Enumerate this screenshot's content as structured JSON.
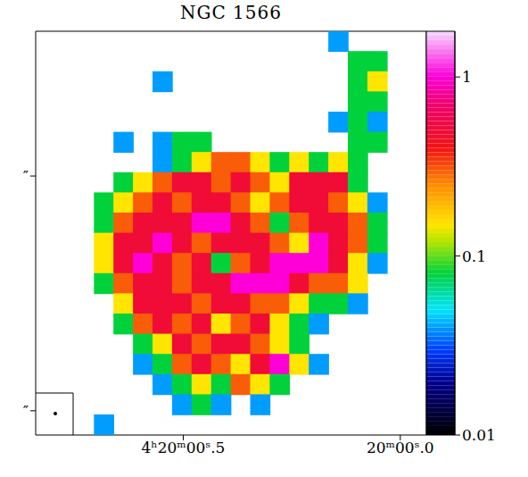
{
  "chart_data": {
    "type": "heatmap",
    "title": "NGC 1566",
    "x": [
      0.8175,
      0.7725,
      0.7275,
      0.6825,
      0.6375,
      0.5925,
      0.5475,
      0.5025,
      0.4575,
      0.4125,
      0.3675,
      0.3225,
      0.2775,
      0.2325,
      0.1875,
      0.1425,
      0.0975,
      0.0525,
      0.0075,
      -0.0375
    ],
    "y": [
      17.21,
      14.63,
      12.05,
      9.47,
      6.89,
      4.31,
      1.73,
      -0.85,
      -3.43,
      -6.01,
      -8.59,
      -11.17,
      -13.75,
      -16.33,
      -18.91,
      -21.49,
      -24.07,
      -26.65,
      -29.23,
      -31.81
    ],
    "cells": [
      [
        null,
        null,
        null,
        null,
        null,
        null,
        null,
        null,
        null,
        null,
        null,
        null,
        null,
        null,
        null,
        0.04,
        null,
        null,
        null,
        null
      ],
      [
        null,
        null,
        null,
        null,
        null,
        null,
        null,
        null,
        null,
        null,
        null,
        null,
        null,
        null,
        null,
        null,
        0.08,
        0.08,
        null,
        null
      ],
      [
        null,
        null,
        null,
        null,
        null,
        null,
        0.04,
        null,
        null,
        null,
        null,
        null,
        null,
        null,
        null,
        null,
        0.08,
        0.15,
        null,
        null
      ],
      [
        null,
        null,
        null,
        null,
        null,
        null,
        null,
        null,
        null,
        null,
        null,
        null,
        null,
        null,
        null,
        null,
        0.08,
        0.08,
        null,
        null
      ],
      [
        null,
        null,
        null,
        null,
        null,
        null,
        null,
        null,
        null,
        null,
        null,
        null,
        null,
        null,
        null,
        0.04,
        0.08,
        0.04,
        null,
        null
      ],
      [
        null,
        null,
        null,
        null,
        0.04,
        null,
        0.04,
        0.08,
        0.08,
        null,
        null,
        null,
        null,
        null,
        null,
        null,
        0.08,
        0.08,
        null,
        null
      ],
      [
        null,
        null,
        null,
        null,
        null,
        null,
        0.04,
        0.08,
        0.15,
        0.3,
        0.3,
        0.15,
        0.08,
        0.15,
        0.08,
        0.15,
        0.08,
        null,
        null,
        null
      ],
      [
        null,
        null,
        null,
        null,
        0.08,
        0.15,
        0.3,
        0.5,
        0.5,
        0.3,
        0.5,
        0.3,
        0.15,
        0.5,
        0.5,
        0.5,
        0.08,
        null,
        null,
        null
      ],
      [
        null,
        null,
        null,
        0.08,
        0.15,
        0.3,
        0.5,
        0.3,
        0.5,
        0.5,
        0.3,
        0.15,
        0.3,
        0.5,
        0.5,
        0.3,
        0.15,
        0.04,
        null,
        null
      ],
      [
        null,
        null,
        null,
        0.08,
        0.3,
        0.5,
        0.5,
        0.5,
        1,
        1,
        0.5,
        0.3,
        0.08,
        0.3,
        0.5,
        0.5,
        0.3,
        0.08,
        null,
        null
      ],
      [
        null,
        null,
        null,
        0.15,
        0.5,
        0.5,
        1,
        0.5,
        0.3,
        0.5,
        0.5,
        0.5,
        0.3,
        0.15,
        1,
        0.5,
        0.3,
        0.08,
        null,
        null
      ],
      [
        null,
        null,
        null,
        0.15,
        0.5,
        1,
        0.5,
        0.3,
        0.5,
        0.08,
        0.3,
        0.5,
        1,
        1,
        1,
        0.5,
        0.15,
        0.04,
        null,
        null
      ],
      [
        null,
        null,
        null,
        0.08,
        0.3,
        0.5,
        0.5,
        0.3,
        0.5,
        0.5,
        1,
        1,
        1,
        0.5,
        0.3,
        0.3,
        0.15,
        null,
        null,
        null
      ],
      [
        null,
        null,
        null,
        null,
        0.15,
        0.5,
        0.5,
        0.5,
        0.3,
        0.5,
        0.5,
        0.3,
        0.3,
        0.15,
        0.08,
        0.08,
        0.04,
        null,
        null,
        null
      ],
      [
        null,
        null,
        null,
        null,
        0.08,
        0.3,
        0.5,
        0.3,
        0.5,
        0.15,
        0.3,
        0.5,
        0.15,
        0.08,
        0.04,
        null,
        null,
        null,
        null,
        null
      ],
      [
        null,
        null,
        null,
        null,
        null,
        0.08,
        0.15,
        0.5,
        0.3,
        0.5,
        0.5,
        0.3,
        0.15,
        0.08,
        null,
        null,
        null,
        null,
        null,
        null
      ],
      [
        null,
        null,
        null,
        null,
        null,
        0.04,
        0.08,
        0.3,
        0.5,
        0.3,
        0.15,
        0.5,
        1,
        0.15,
        0.04,
        null,
        null,
        null,
        null,
        null
      ],
      [
        null,
        null,
        null,
        null,
        null,
        null,
        0.04,
        0.08,
        0.15,
        0.08,
        0.3,
        0.15,
        0.08,
        null,
        null,
        null,
        null,
        null,
        null,
        null
      ],
      [
        null,
        null,
        null,
        null,
        null,
        null,
        null,
        0.04,
        0.08,
        0.04,
        null,
        0.04,
        null,
        null,
        null,
        null,
        null,
        null,
        null,
        null
      ],
      [
        null,
        null,
        null,
        0.04,
        null,
        null,
        null,
        null,
        null,
        null,
        null,
        null,
        null,
        null,
        null,
        null,
        null,
        null,
        null,
        null
      ]
    ],
    "xlim": [
      0.84,
      -0.06
    ],
    "ylim": [
      -33.1,
      18.5
    ],
    "xticks": [
      {
        "value": 0.5,
        "label": "4ʰ20ᵐ00ˢ.5"
      },
      {
        "value": 0,
        "label": "20ᵐ00ˢ.0"
      }
    ],
    "yticks": [
      {
        "value": 0,
        "label": "″"
      },
      {
        "value": -30,
        "label": "″"
      }
    ],
    "colorbar": {
      "range": [
        0.01,
        1.8
      ],
      "ticks": [
        0.01,
        0.1,
        1
      ],
      "log": true
    }
  }
}
